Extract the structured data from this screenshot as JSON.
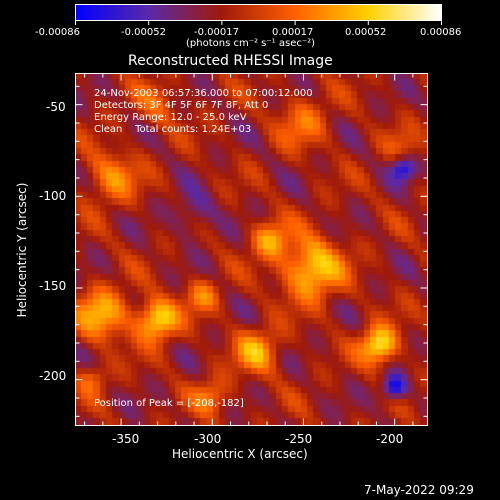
{
  "colorbar": {
    "ticks": [
      "-0.00086",
      "-0.00052",
      "-0.00017",
      "0.00017",
      "0.00052",
      "0.00086"
    ],
    "unit_label": "(photons cm⁻² s⁻¹ asec⁻²)"
  },
  "plot": {
    "title": "Reconstructed RHESSI Image",
    "xlabel": "Heliocentric X (arcsec)",
    "ylabel": "Heliocentric Y (arcsec)",
    "xticks": [
      "-350",
      "-300",
      "-250",
      "-200"
    ],
    "yticks": [
      "-50",
      "-100",
      "-150",
      "-200"
    ],
    "annotations": [
      "24-Nov-2003 06:57:36.000 to 07:00:12.000",
      "Detectors: 3F 4F 5F 6F 7F 8F, Att 0",
      "Energy Range: 12.0 - 25.0 keV",
      "Clean    Total counts: 1.24E+03"
    ],
    "peak_label": "Position of Peak = [-208,-182]"
  },
  "footer": {
    "timestamp": "7-May-2022 09:29"
  },
  "chart_data": {
    "type": "heatmap",
    "title": "Reconstructed RHESSI Image",
    "xlabel": "Heliocentric X (arcsec)",
    "ylabel": "Heliocentric Y (arcsec)",
    "xlim": [
      -375,
      -182
    ],
    "ylim": [
      -225,
      -33
    ],
    "color_range": [
      -0.00086,
      0.00086
    ],
    "colormap": [
      "#0000ff",
      "#5a2aa8",
      "#a01a0a",
      "#ff6000",
      "#ffd000",
      "#ffffff"
    ],
    "peak": [
      -208,
      -182
    ],
    "sources": [
      {
        "x": -245,
        "y": -140,
        "r": 16,
        "v": 0.00075
      },
      {
        "x": -330,
        "y": -168,
        "r": 11,
        "v": 0.0008
      },
      {
        "x": -208,
        "y": -182,
        "r": 10,
        "v": 0.00086
      },
      {
        "x": -268,
        "y": -124,
        "r": 10,
        "v": 0.00055
      },
      {
        "x": -355,
        "y": -90,
        "r": 14,
        "v": 0.00045
      },
      {
        "x": -360,
        "y": -165,
        "r": 14,
        "v": 0.0006
      },
      {
        "x": -275,
        "y": -185,
        "r": 12,
        "v": 0.00055
      },
      {
        "x": -330,
        "y": -50,
        "r": 12,
        "v": 0.0003
      },
      {
        "x": -250,
        "y": -60,
        "r": 14,
        "v": 0.00035
      },
      {
        "x": -300,
        "y": -210,
        "r": 10,
        "v": 0.0004
      },
      {
        "x": -195,
        "y": -75,
        "r": 10,
        "v": 0.00025
      },
      {
        "x": -305,
        "y": -155,
        "r": 9,
        "v": 0.0004
      },
      {
        "x": -365,
        "y": -200,
        "r": 8,
        "v": 0.00035
      },
      {
        "x": -200,
        "y": -205,
        "r": 7,
        "v": -0.0007
      },
      {
        "x": -195,
        "y": -85,
        "r": 7,
        "v": -0.0006
      },
      {
        "x": -310,
        "y": -110,
        "r": 12,
        "v": -0.0003
      }
    ]
  }
}
